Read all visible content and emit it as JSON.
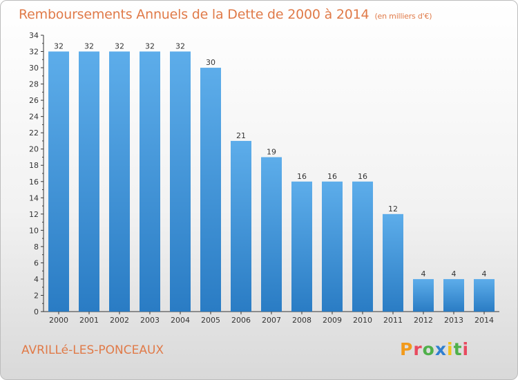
{
  "chart_data": {
    "type": "bar",
    "title": "Remboursements Annuels de la Dette de 2000 à 2014",
    "unit": "(en milliers d'€)",
    "categories": [
      "2000",
      "2001",
      "2002",
      "2003",
      "2004",
      "2005",
      "2006",
      "2007",
      "2008",
      "2009",
      "2010",
      "2011",
      "2012",
      "2013",
      "2014"
    ],
    "values": [
      32,
      32,
      32,
      32,
      32,
      30,
      21,
      19,
      16,
      16,
      16,
      12,
      4,
      4,
      4
    ],
    "ylim": [
      0,
      34
    ],
    "yticks": [
      0,
      2,
      4,
      6,
      8,
      10,
      12,
      14,
      16,
      18,
      20,
      22,
      24,
      26,
      28,
      30,
      32,
      34
    ],
    "grid": false,
    "bar_color_top": "#5dadea",
    "bar_color_bottom": "#2a7cc4"
  },
  "footer": {
    "commune": "AVRILLé-LES-PONCEAUX",
    "logo": "Proxiti"
  },
  "colors": {
    "title": "#e07a48",
    "axis": "#333333"
  }
}
